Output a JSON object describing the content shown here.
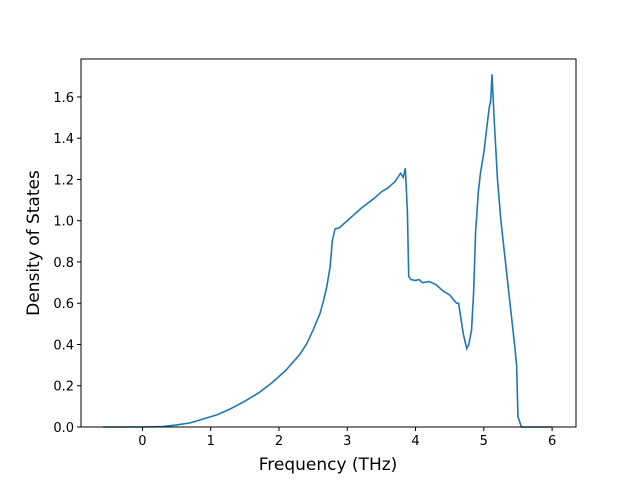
{
  "chart_data": {
    "type": "line",
    "xlabel": "Frequency (THz)",
    "ylabel": "Density of States",
    "xlim": [
      -0.9,
      6.35
    ],
    "ylim": [
      0,
      1.784
    ],
    "xticks": [
      0,
      1,
      2,
      3,
      4,
      5,
      6
    ],
    "yticks": [
      {
        "value": 0,
        "label": "0.0"
      },
      {
        "value": 0.2,
        "label": "0.2"
      },
      {
        "value": 0.4,
        "label": "0.4"
      },
      {
        "value": 0.6,
        "label": "0.6"
      },
      {
        "value": 0.8,
        "label": "0.8"
      },
      {
        "value": 1.0,
        "label": "1.0"
      },
      {
        "value": 1.2,
        "label": "1.2"
      },
      {
        "value": 1.4,
        "label": "1.4"
      },
      {
        "value": 1.6,
        "label": "1.6"
      }
    ],
    "series": [
      {
        "color": "#1f77b4",
        "x": [
          -0.58,
          0,
          0.3,
          0.5,
          0.7,
          0.9,
          1.1,
          1.3,
          1.5,
          1.7,
          1.9,
          2.1,
          2.3,
          2.4,
          2.5,
          2.6,
          2.65,
          2.7,
          2.75,
          2.78,
          2.82,
          2.88,
          3.0,
          3.1,
          3.2,
          3.4,
          3.5,
          3.6,
          3.7,
          3.78,
          3.82,
          3.85,
          3.88,
          3.9,
          3.93,
          4.0,
          4.05,
          4.1,
          4.2,
          4.3,
          4.4,
          4.5,
          4.6,
          4.63,
          4.7,
          4.75,
          4.78,
          4.82,
          4.85,
          4.88,
          4.92,
          4.95,
          5.0,
          5.05,
          5.08,
          5.1,
          5.12,
          5.15,
          5.2,
          5.25,
          5.3,
          5.35,
          5.4,
          5.45,
          5.48,
          5.5,
          5.55,
          6.0
        ],
        "values": [
          0,
          0,
          0.002,
          0.01,
          0.02,
          0.04,
          0.06,
          0.09,
          0.125,
          0.165,
          0.215,
          0.275,
          0.35,
          0.4,
          0.47,
          0.55,
          0.61,
          0.68,
          0.78,
          0.9,
          0.96,
          0.965,
          1.0,
          1.03,
          1.06,
          1.11,
          1.14,
          1.16,
          1.19,
          1.23,
          1.21,
          1.255,
          1.05,
          0.73,
          0.715,
          0.71,
          0.715,
          0.7,
          0.705,
          0.69,
          0.66,
          0.64,
          0.6,
          0.6,
          0.45,
          0.38,
          0.4,
          0.47,
          0.65,
          0.95,
          1.14,
          1.23,
          1.33,
          1.47,
          1.55,
          1.58,
          1.71,
          1.5,
          1.2,
          1.0,
          0.85,
          0.7,
          0.55,
          0.4,
          0.3,
          0.05,
          0,
          0
        ]
      }
    ]
  }
}
